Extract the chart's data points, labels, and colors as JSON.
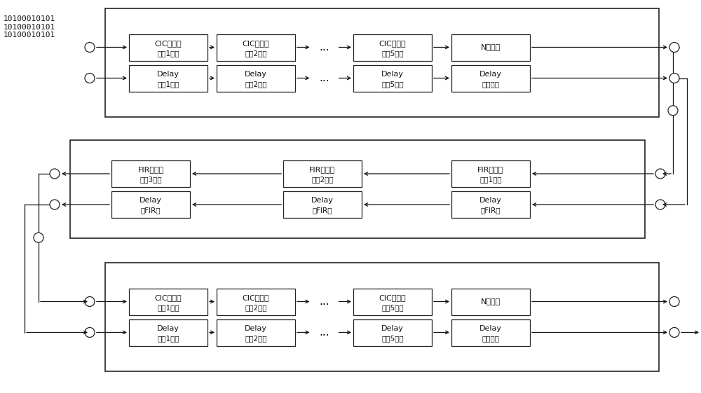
{
  "bg_color": "#ffffff",
  "fig_width": 10.0,
  "fig_height": 5.61,
  "input_text": "10100010101\n10100010101\n10100010101",
  "row1_blocks": [
    {
      "top_label": "CIC滤波器",
      "top_sub": "（共1级）",
      "bot_label": "Delay",
      "bot_sub": "（共1级）"
    },
    {
      "top_label": "CIC滤波器",
      "top_sub": "（共2级）",
      "bot_label": "Delay",
      "bot_sub": "（共2级）"
    },
    {
      "top_label": "CIC滤波器",
      "top_sub": "（共5级）",
      "bot_label": "Delay",
      "bot_sub": "（共5级）"
    },
    {
      "top_label": "N倍抽取",
      "top_sub": "",
      "bot_label": "Delay",
      "bot_sub": "（抽取）"
    }
  ],
  "row2_blocks": [
    {
      "top_label": "FIR滤波器",
      "top_sub": "（共3级）",
      "bot_label": "Delay",
      "bot_sub": "（FIR）"
    },
    {
      "top_label": "FIR滤波器",
      "top_sub": "（共2级）",
      "bot_label": "Delay",
      "bot_sub": "（FIR）"
    },
    {
      "top_label": "FIR滤波器",
      "top_sub": "（共1级）",
      "bot_label": "Delay",
      "bot_sub": "（FIR）"
    }
  ],
  "row3_blocks": [
    {
      "top_label": "CIC滤波器",
      "top_sub": "（共1级）",
      "bot_label": "Delay",
      "bot_sub": "（共1级）"
    },
    {
      "top_label": "CIC滤波器",
      "top_sub": "（共2级）",
      "bot_label": "Delay",
      "bot_sub": "（共2级）"
    },
    {
      "top_label": "CIC滤波器",
      "top_sub": "（共5级）",
      "bot_label": "Delay",
      "bot_sub": "（共5级）"
    },
    {
      "top_label": "N倍插値",
      "top_sub": "",
      "bot_label": "Delay",
      "bot_sub": "（插値）"
    }
  ]
}
